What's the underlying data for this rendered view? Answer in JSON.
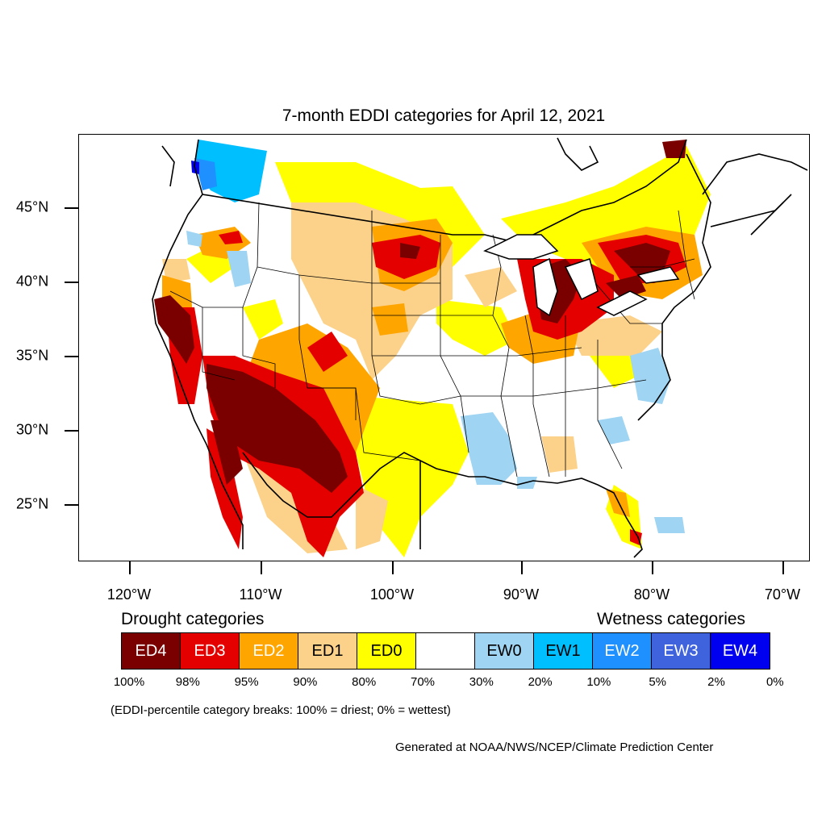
{
  "title": "7-month EDDI categories for April 12, 2021",
  "lat_labels": [
    "45°N",
    "40°N",
    "35°N",
    "30°N",
    "25°N"
  ],
  "lon_labels": [
    "120°W",
    "110°W",
    "100°W",
    "90°W",
    "80°W",
    "70°W"
  ],
  "legend": {
    "drought_heading": "Drought categories",
    "wetness_heading": "Wetness categories",
    "categories": [
      {
        "label": "ED4",
        "color": "#7a0000",
        "text_color": "#ffffff"
      },
      {
        "label": "ED3",
        "color": "#e50000",
        "text_color": "#ffffff"
      },
      {
        "label": "ED2",
        "color": "#ffa500",
        "text_color": "#ffffff"
      },
      {
        "label": "ED1",
        "color": "#fcd28a",
        "text_color": "#000000"
      },
      {
        "label": "ED0",
        "color": "#ffff00",
        "text_color": "#000000"
      },
      {
        "label": "",
        "color": "#ffffff",
        "text_color": "#000000"
      },
      {
        "label": "EW0",
        "color": "#9fd4f2",
        "text_color": "#000000"
      },
      {
        "label": "EW1",
        "color": "#00bfff",
        "text_color": "#000000"
      },
      {
        "label": "EW2",
        "color": "#1e90ff",
        "text_color": "#ffffff"
      },
      {
        "label": "EW3",
        "color": "#3f63dc",
        "text_color": "#ffffff"
      },
      {
        "label": "EW4",
        "color": "#0000f0",
        "text_color": "#ffffff"
      }
    ],
    "percent_breaks": [
      "100%",
      "98%",
      "95%",
      "90%",
      "80%",
      "70%",
      "30%",
      "20%",
      "10%",
      "5%",
      "2%",
      "0%"
    ]
  },
  "note": "(EDDI-percentile category breaks: 100% = driest; 0% = wettest)",
  "credit": "Generated at NOAA/NWS/NCEP/Climate Prediction Center"
}
